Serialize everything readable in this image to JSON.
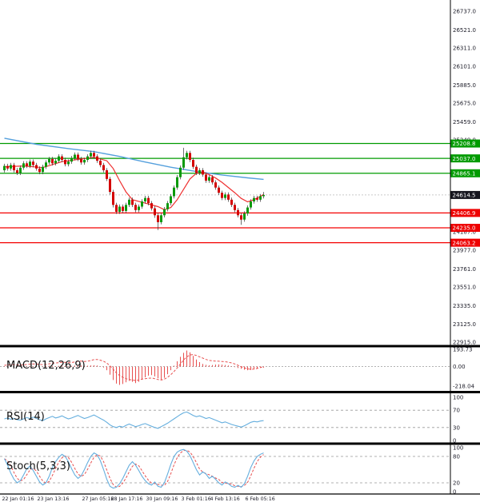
{
  "colors": {
    "up_candle": "#0a9a0a",
    "down_candle": "#d40000",
    "wick": "#333333",
    "resistance_line": "#009b00",
    "support_line": "#f40000",
    "resistance_tag_bg": "#009b00",
    "support_tag_bg": "#ee0000",
    "current_tag_bg": "#15151e",
    "trendline_blue": "#55a0dd",
    "ma_red": "#ee3030",
    "macd": "#e85050",
    "rsi_line": "#64aede",
    "stoch_k": "#64aede",
    "stoch_d": "#e85050",
    "guide_dash": "#999999",
    "axis_text": "#1c1c28",
    "separator": "#000000"
  },
  "chart_data": {
    "type": "candlestick",
    "x_labels": [
      "22 Jan 01:16",
      "23 Jan 13:16",
      "27 Jan 05:16",
      "28 Jan 17:16",
      "30 Jan 09:16",
      "3 Feb 01:16",
      "4 Feb 13:16",
      "6 Feb 05:16"
    ],
    "x_label_idx": [
      0,
      11,
      25,
      34,
      45,
      56,
      65,
      76
    ],
    "main": {
      "ylim": [
        22915.0,
        26737.0
      ],
      "yticks": [
        26737.0,
        26521.0,
        26311.0,
        26101.0,
        25885.0,
        25675.0,
        25459.0,
        25249.0,
        24187.0,
        23977.0,
        23761.0,
        23551.0,
        23335.0,
        23125.0,
        22915.0
      ],
      "levels": {
        "resistance": [
          25208.8,
          25037.0,
          24865.1
        ],
        "current_price": 24614.5,
        "support": [
          24406.9,
          24235.0,
          24063.2
        ]
      },
      "candles_ohlc": [
        [
          24900,
          24975,
          24875,
          24950
        ],
        [
          24950,
          24975,
          24895,
          24920
        ],
        [
          24920,
          24985,
          24895,
          24960
        ],
        [
          24960,
          24985,
          24875,
          24900
        ],
        [
          24900,
          24925,
          24845,
          24870
        ],
        [
          24870,
          24955,
          24845,
          24930
        ],
        [
          24930,
          25005,
          24905,
          24980
        ],
        [
          24980,
          25005,
          24925,
          24950
        ],
        [
          24950,
          25025,
          24925,
          25000
        ],
        [
          25000,
          25025,
          24935,
          24960
        ],
        [
          24960,
          24985,
          24895,
          24920
        ],
        [
          24920,
          24945,
          24855,
          24880
        ],
        [
          24880,
          24965,
          24855,
          24940
        ],
        [
          24940,
          25015,
          24915,
          24990
        ],
        [
          24990,
          25055,
          24965,
          25030
        ],
        [
          25030,
          25055,
          24955,
          24980
        ],
        [
          24980,
          25035,
          24955,
          25010
        ],
        [
          25010,
          25085,
          24985,
          25060
        ],
        [
          25060,
          25085,
          24995,
          25020
        ],
        [
          25020,
          25045,
          24945,
          24970
        ],
        [
          24970,
          25025,
          24945,
          25000
        ],
        [
          25000,
          25065,
          24975,
          25040
        ],
        [
          25040,
          25105,
          25015,
          25080
        ],
        [
          25080,
          25105,
          25005,
          25030
        ],
        [
          25030,
          25055,
          24965,
          24990
        ],
        [
          24990,
          25045,
          24965,
          25020
        ],
        [
          25020,
          25085,
          24995,
          25060
        ],
        [
          25060,
          25125,
          25035,
          25100
        ],
        [
          25100,
          25125,
          25035,
          25060
        ],
        [
          25060,
          25085,
          24985,
          25010
        ],
        [
          25010,
          25035,
          24935,
          24960
        ],
        [
          24960,
          24985,
          24875,
          24900
        ],
        [
          24900,
          24925,
          24775,
          24800
        ],
        [
          24800,
          24825,
          24620,
          24650
        ],
        [
          24650,
          24675,
          24470,
          24500
        ],
        [
          24500,
          24525,
          24395,
          24420
        ],
        [
          24420,
          24505,
          24395,
          24480
        ],
        [
          24480,
          24505,
          24405,
          24430
        ],
        [
          24430,
          24525,
          24405,
          24500
        ],
        [
          24500,
          24585,
          24475,
          24560
        ],
        [
          24560,
          24585,
          24475,
          24500
        ],
        [
          24500,
          24525,
          24415,
          24440
        ],
        [
          24440,
          24505,
          24415,
          24480
        ],
        [
          24480,
          24565,
          24455,
          24540
        ],
        [
          24540,
          24605,
          24515,
          24580
        ],
        [
          24580,
          24605,
          24495,
          24520
        ],
        [
          24520,
          24545,
          24435,
          24460
        ],
        [
          24460,
          24485,
          24350,
          24380
        ],
        [
          24380,
          24405,
          24210,
          24300
        ],
        [
          24300,
          24405,
          24275,
          24380
        ],
        [
          24380,
          24475,
          24355,
          24450
        ],
        [
          24450,
          24545,
          24425,
          24520
        ],
        [
          24520,
          24625,
          24495,
          24600
        ],
        [
          24600,
          24725,
          24575,
          24700
        ],
        [
          24700,
          24845,
          24675,
          24820
        ],
        [
          24820,
          24955,
          24795,
          24930
        ],
        [
          24930,
          25160,
          24905,
          25050
        ],
        [
          25050,
          25125,
          25025,
          25100
        ],
        [
          25100,
          25125,
          24995,
          25020
        ],
        [
          25020,
          25045,
          24915,
          24940
        ],
        [
          24940,
          24965,
          24845,
          24870
        ],
        [
          24870,
          24925,
          24845,
          24900
        ],
        [
          24900,
          24925,
          24825,
          24850
        ],
        [
          24850,
          24875,
          24755,
          24780
        ],
        [
          24780,
          24845,
          24755,
          24820
        ],
        [
          24820,
          24845,
          24735,
          24760
        ],
        [
          24760,
          24785,
          24675,
          24700
        ],
        [
          24700,
          24725,
          24615,
          24640
        ],
        [
          24640,
          24665,
          24555,
          24580
        ],
        [
          24580,
          24645,
          24555,
          24620
        ],
        [
          24620,
          24645,
          24535,
          24560
        ],
        [
          24560,
          24585,
          24475,
          24500
        ],
        [
          24500,
          24525,
          24415,
          24440
        ],
        [
          24440,
          24465,
          24355,
          24380
        ],
        [
          24380,
          24405,
          24270,
          24330
        ],
        [
          24330,
          24425,
          24305,
          24400
        ],
        [
          24400,
          24495,
          24375,
          24470
        ],
        [
          24470,
          24565,
          24445,
          24540
        ],
        [
          24540,
          24605,
          24515,
          24580
        ],
        [
          24580,
          24605,
          24535,
          24560
        ],
        [
          24560,
          24625,
          24535,
          24600
        ],
        [
          24600,
          24650,
          24575,
          24614.5
        ]
      ],
      "trendline_blue": [
        [
          0,
          25270
        ],
        [
          10,
          25200
        ],
        [
          20,
          25150
        ],
        [
          28,
          25115
        ],
        [
          36,
          25060
        ],
        [
          44,
          24995
        ],
        [
          52,
          24935
        ],
        [
          60,
          24885
        ],
        [
          68,
          24845
        ],
        [
          76,
          24812
        ],
        [
          81,
          24795
        ]
      ],
      "ma_red": [
        [
          0,
          24940
        ],
        [
          6,
          24950
        ],
        [
          12,
          24930
        ],
        [
          18,
          25000
        ],
        [
          24,
          25030
        ],
        [
          28,
          25050
        ],
        [
          32,
          25010
        ],
        [
          34,
          24920
        ],
        [
          36,
          24780
        ],
        [
          38,
          24650
        ],
        [
          40,
          24560
        ],
        [
          44,
          24520
        ],
        [
          48,
          24480
        ],
        [
          50,
          24445
        ],
        [
          52,
          24470
        ],
        [
          54,
          24560
        ],
        [
          56,
          24680
        ],
        [
          58,
          24800
        ],
        [
          60,
          24865
        ],
        [
          62,
          24880
        ],
        [
          64,
          24850
        ],
        [
          66,
          24810
        ],
        [
          68,
          24760
        ],
        [
          70,
          24700
        ],
        [
          72,
          24640
        ],
        [
          74,
          24575
        ],
        [
          76,
          24535
        ],
        [
          78,
          24560
        ],
        [
          80,
          24600
        ],
        [
          81,
          24620
        ]
      ]
    },
    "macd": {
      "title": "MACD(12,26,9)",
      "ylim": [
        -218.04,
        193.73
      ],
      "ytick_labels": [
        "193.73",
        "0.00",
        "-218.04"
      ],
      "signal": [
        15,
        18,
        20,
        22,
        20,
        18,
        20,
        24,
        28,
        30,
        28,
        25,
        22,
        26,
        32,
        40,
        42,
        44,
        50,
        48,
        44,
        46,
        52,
        60,
        62,
        58,
        60,
        68,
        78,
        80,
        72,
        60,
        40,
        10,
        -30,
        -70,
        -100,
        -120,
        -135,
        -145,
        -150,
        -155,
        -150,
        -140,
        -135,
        -130,
        -128,
        -135,
        -145,
        -150,
        -140,
        -120,
        -90,
        -55,
        -15,
        30,
        75,
        110,
        130,
        135,
        125,
        110,
        95,
        80,
        70,
        65,
        62,
        60,
        58,
        55,
        50,
        42,
        30,
        15,
        0,
        -15,
        -25,
        -30,
        -28,
        -20,
        -10,
        0
      ],
      "histogram": [
        5,
        6,
        4,
        3,
        2,
        4,
        6,
        5,
        7,
        6,
        4,
        3,
        5,
        8,
        10,
        8,
        6,
        8,
        10,
        8,
        6,
        8,
        12,
        14,
        12,
        8,
        10,
        14,
        16,
        12,
        4,
        -10,
        -40,
        -90,
        -150,
        -190,
        -205,
        -195,
        -175,
        -160,
        -170,
        -185,
        -170,
        -145,
        -120,
        -100,
        -95,
        -110,
        -130,
        -150,
        -125,
        -85,
        -40,
        10,
        60,
        110,
        155,
        180,
        160,
        120,
        80,
        50,
        30,
        20,
        15,
        18,
        22,
        25,
        22,
        18,
        12,
        5,
        -5,
        -15,
        -25,
        -35,
        -40,
        -38,
        -30,
        -18,
        -8,
        -12
      ]
    },
    "rsi": {
      "title": "RSI(14)",
      "ylim": [
        0,
        100
      ],
      "yticks": [
        100,
        70,
        30,
        0
      ],
      "values": [
        50,
        52,
        49,
        51,
        48,
        47,
        50,
        53,
        51,
        54,
        51,
        48,
        46,
        50,
        53,
        56,
        52,
        54,
        57,
        53,
        50,
        52,
        55,
        58,
        54,
        51,
        53,
        56,
        59,
        55,
        51,
        47,
        42,
        36,
        32,
        30,
        33,
        31,
        35,
        38,
        35,
        32,
        34,
        37,
        39,
        36,
        33,
        30,
        28,
        32,
        36,
        40,
        45,
        50,
        55,
        60,
        64,
        66,
        62,
        58,
        55,
        57,
        54,
        51,
        53,
        50,
        47,
        44,
        41,
        43,
        40,
        37,
        35,
        33,
        31,
        34,
        38,
        42,
        44,
        43,
        45,
        46
      ]
    },
    "stoch": {
      "title": "Stoch(5,3,3)",
      "ylim": [
        0,
        100
      ],
      "yticks": [
        100,
        80,
        20,
        0
      ],
      "k": [
        75,
        60,
        42,
        28,
        20,
        25,
        38,
        52,
        58,
        48,
        35,
        22,
        15,
        20,
        35,
        55,
        68,
        78,
        85,
        80,
        68,
        52,
        38,
        30,
        36,
        50,
        66,
        80,
        88,
        84,
        70,
        50,
        28,
        12,
        8,
        10,
        18,
        30,
        45,
        60,
        68,
        60,
        48,
        35,
        25,
        18,
        15,
        22,
        12,
        10,
        20,
        40,
        62,
        80,
        90,
        94,
        96,
        92,
        82,
        66,
        50,
        38,
        45,
        40,
        30,
        35,
        28,
        20,
        15,
        22,
        18,
        12,
        10,
        14,
        10,
        18,
        35,
        55,
        70,
        80,
        85,
        88
      ]
    }
  }
}
